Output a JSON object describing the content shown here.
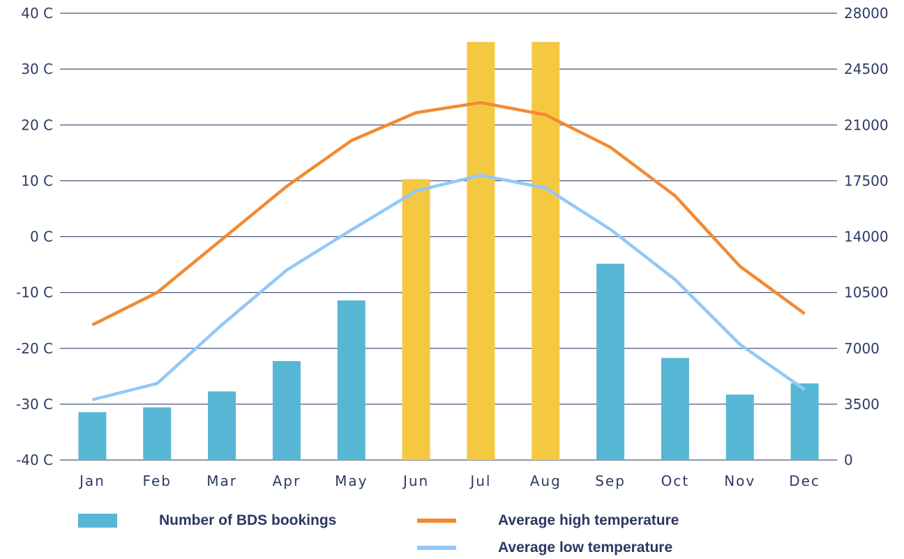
{
  "chart_data": {
    "type": "bar",
    "categories": [
      "Jan",
      "Feb",
      "Mar",
      "Apr",
      "May",
      "Jun",
      "Jul",
      "Aug",
      "Sep",
      "Oct",
      "Nov",
      "Dec"
    ],
    "series": [
      {
        "name": "Number of BDS bookings",
        "type": "bar",
        "axis": "right",
        "values": [
          3000,
          3300,
          4300,
          6200,
          10000,
          17600,
          26200,
          26200,
          12300,
          6400,
          4100,
          4800
        ],
        "highlight": [
          false,
          false,
          false,
          false,
          false,
          true,
          true,
          true,
          false,
          false,
          false,
          false
        ]
      },
      {
        "name": "Average high temperature",
        "type": "line",
        "axis": "left",
        "values": [
          -15.8,
          -10,
          -0.5,
          9,
          17.2,
          22.2,
          24,
          21.8,
          16,
          7.3,
          -5.3,
          -13.8
        ]
      },
      {
        "name": "Average low temperature",
        "type": "line",
        "axis": "left",
        "values": [
          -29.2,
          -26.3,
          -15.8,
          -6,
          1.2,
          8.2,
          11,
          8.7,
          1.3,
          -7.7,
          -19.3,
          -27.4
        ]
      }
    ],
    "y_left": {
      "ylim": [
        -40,
        40
      ],
      "tick_labels": [
        "40 C",
        "30 C",
        "20 C",
        "10 C",
        "0 C",
        "-10 C",
        "-20 C",
        "-30 C",
        "-40 C"
      ]
    },
    "y_right": {
      "ylim": [
        0,
        28000
      ],
      "tick_labels": [
        "28000",
        "24500",
        "21000",
        "17500",
        "14000",
        "10500",
        "7000",
        "3500",
        "0"
      ]
    },
    "grid": true,
    "legend_position": "bottom"
  },
  "colors": {
    "bar": "#58b6d5",
    "bar_highlight": "#f5c842",
    "high_line": "#f28a32",
    "low_line": "#93c8f7",
    "grid": "#4a5478",
    "text": "#2e3a66"
  }
}
